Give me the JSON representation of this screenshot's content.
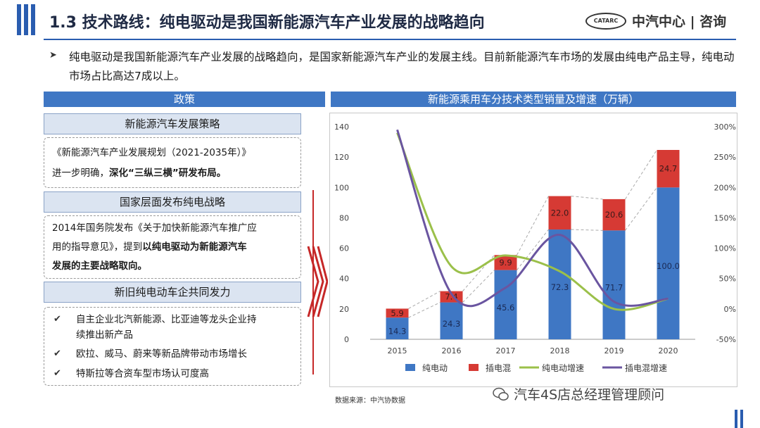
{
  "header": {
    "title": "1.3 技术路线：纯电驱动是我国新能源汽车产业发展的战略趋向",
    "logo_mark": "CATARC",
    "logo_text": "中汽中心 | 咨询"
  },
  "intro": {
    "text": "纯电驱动是我国新能源汽车产业发展的战略趋向，是国家新能源汽车产业的发展主线。目前新能源汽车市场的发展由纯电产品主导，纯电动市场占比高达7成以上。"
  },
  "policy": {
    "header": "政策",
    "sections": [
      {
        "title": "新能源汽车发展策略",
        "line1": "《新能源汽车产业发展规划（2021-2035年）》",
        "line2_pre": "进一步明确，",
        "line2_bold": "深化“三纵三横”研发布局。"
      },
      {
        "title": "国家层面发布纯电战略",
        "line1": "2014年国务院发布《关于加快新能源汽车推广应",
        "line2_pre": "用的指导意见》，提到",
        "line2_bold": "以纯电驱动为新能源汽车",
        "line3_bold": "发展的主要战略取向。"
      },
      {
        "title": "新旧纯电动车企共同发力",
        "items": [
          {
            "line1": "自主企业北汽新能源、比亚迪等龙头企业持",
            "line2": "续推出新产品"
          },
          {
            "line1": "欧拉、威马、蔚来等新品牌带动市场增长"
          },
          {
            "line1": "特斯拉等合资车型市场认可度高"
          }
        ]
      }
    ]
  },
  "chart_header": "新能源乘用车分技术类型销量及增速（万辆）",
  "chart_data": {
    "type": "bar",
    "stacked": true,
    "title": "新能源乘用车分技术类型销量及增速（万辆）",
    "categories": [
      "2015",
      "2016",
      "2017",
      "2018",
      "2019",
      "2020"
    ],
    "series": [
      {
        "name": "纯电动",
        "kind": "bar",
        "axis": "left",
        "color": "#3f77c4",
        "values": [
          14.3,
          24.3,
          45.6,
          72.3,
          71.7,
          100.0
        ],
        "labels": [
          "14.3",
          "24.3",
          "45.6",
          "72.3",
          "71.7",
          "100.0"
        ]
      },
      {
        "name": "插电混",
        "kind": "bar",
        "axis": "left",
        "color": "#d63a34",
        "values": [
          5.9,
          7.4,
          9.9,
          22.0,
          20.6,
          24.7
        ],
        "labels": [
          "5.9",
          "7.4",
          "9.9",
          "22.0",
          "20.6",
          "24.7"
        ]
      },
      {
        "name": "纯电动增速",
        "kind": "line",
        "axis": "right",
        "color": "#9bc04a",
        "values": [
          290,
          70,
          88,
          62,
          0,
          17
        ]
      },
      {
        "name": "插电混增速",
        "kind": "line",
        "axis": "right",
        "color": "#6a55a0",
        "values": [
          295,
          25,
          35,
          122,
          12,
          17
        ]
      }
    ],
    "y_left": {
      "min": 0,
      "max": 140,
      "step": 20,
      "ticks": [
        "0",
        "20",
        "40",
        "60",
        "80",
        "100",
        "120",
        "140"
      ]
    },
    "y_right": {
      "min": -50,
      "max": 300,
      "step": 50,
      "ticks": [
        "-50%",
        "0%",
        "50%",
        "100%",
        "150%",
        "200%",
        "250%",
        "300%"
      ]
    },
    "legend_position": "bottom",
    "grid": false
  },
  "source": "数据来源：中汽协数据",
  "watermark": "汽车4S店总经理管理顾问"
}
